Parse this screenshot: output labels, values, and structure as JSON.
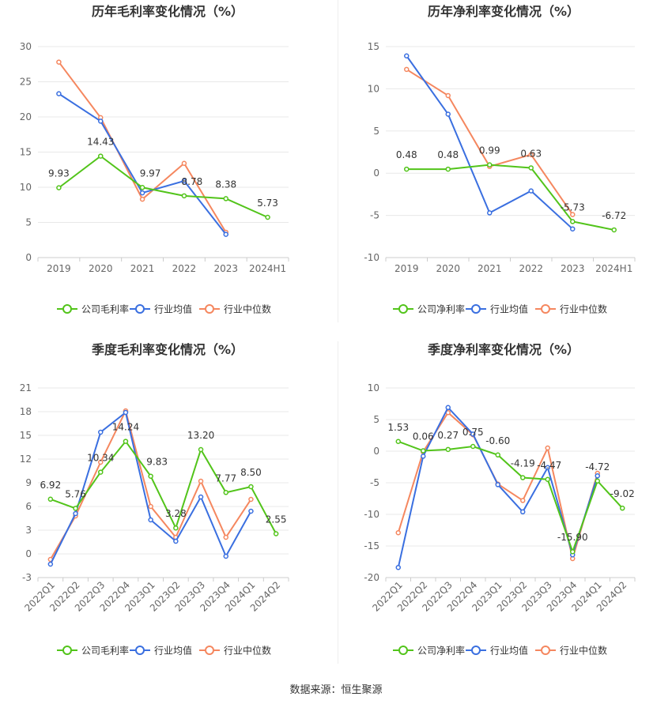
{
  "colors": {
    "company": "#52c41a",
    "industry_avg": "#3a6fe0",
    "industry_median": "#f5875f",
    "grid": "#e8e8e8",
    "axis_text": "#666666",
    "title": "#333333"
  },
  "legend": {
    "company_gross": "公司毛利率",
    "company_net": "公司净利率",
    "industry_avg": "行业均值",
    "industry_median": "行业中位数"
  },
  "footer": "数据来源：恒生聚源",
  "chart_data": [
    {
      "type": "line",
      "title": "历年毛利率变化情况（%）",
      "categories": [
        "2019",
        "2020",
        "2021",
        "2022",
        "2023",
        "2024H1"
      ],
      "yticks": [
        0,
        5,
        10,
        15,
        20,
        25,
        30
      ],
      "ylim": [
        0,
        30
      ],
      "series": [
        {
          "name": "公司毛利率",
          "key": "company",
          "values": [
            9.93,
            14.43,
            9.97,
            8.78,
            8.38,
            5.73
          ],
          "labels": [
            "9.93",
            "14.43",
            "9.97",
            "8.78",
            "8.38",
            "5.73"
          ]
        },
        {
          "name": "行业均值",
          "key": "industry_avg",
          "values": [
            23.3,
            19.4,
            9.2,
            10.9,
            3.3,
            null
          ]
        },
        {
          "name": "行业中位数",
          "key": "industry_median",
          "values": [
            27.8,
            19.9,
            8.3,
            13.4,
            3.6,
            null
          ]
        }
      ]
    },
    {
      "type": "line",
      "title": "历年净利率变化情况（%）",
      "categories": [
        "2019",
        "2020",
        "2021",
        "2022",
        "2023",
        "2024H1"
      ],
      "yticks": [
        -10,
        -5,
        0,
        5,
        10,
        15
      ],
      "ylim": [
        -10,
        15
      ],
      "series": [
        {
          "name": "公司净利率",
          "key": "company",
          "values": [
            0.48,
            0.48,
            0.99,
            0.63,
            -5.73,
            -6.72
          ],
          "labels": [
            "0.48",
            "0.48",
            "0.99",
            "0.63",
            "-5.73",
            "-6.72"
          ]
        },
        {
          "name": "行业均值",
          "key": "industry_avg",
          "values": [
            13.9,
            7.0,
            -4.7,
            -2.1,
            -6.6,
            null
          ]
        },
        {
          "name": "行业中位数",
          "key": "industry_median",
          "values": [
            12.3,
            9.2,
            0.8,
            2.2,
            -4.9,
            null
          ]
        }
      ]
    },
    {
      "type": "line",
      "title": "季度毛利率变化情况（%）",
      "categories": [
        "2022Q1",
        "2022Q2",
        "2022Q3",
        "2022Q4",
        "2023Q1",
        "2023Q2",
        "2023Q3",
        "2023Q4",
        "2024Q1",
        "2024Q2"
      ],
      "yticks": [
        -3,
        0,
        3,
        6,
        9,
        12,
        15,
        18,
        21
      ],
      "ylim": [
        -3,
        21
      ],
      "series": [
        {
          "name": "公司毛利率",
          "key": "company",
          "values": [
            6.92,
            5.76,
            10.34,
            14.24,
            9.83,
            3.28,
            13.2,
            7.77,
            8.5,
            2.55
          ],
          "labels": [
            "6.92",
            "5.76",
            "10.34",
            "14.24",
            "9.83",
            "3.28",
            "13.20",
            "7.77",
            "8.50",
            "2.55"
          ]
        },
        {
          "name": "行业均值",
          "key": "industry_avg",
          "values": [
            -1.3,
            5.1,
            15.4,
            17.9,
            4.3,
            1.6,
            7.2,
            -0.3,
            5.4,
            null
          ]
        },
        {
          "name": "行业中位数",
          "key": "industry_median",
          "values": [
            -0.7,
            4.8,
            11.6,
            18.1,
            6.0,
            2.1,
            9.2,
            2.1,
            6.9,
            null
          ]
        }
      ]
    },
    {
      "type": "line",
      "title": "季度净利率变化情况（%）",
      "categories": [
        "2022Q1",
        "2022Q2",
        "2022Q3",
        "2022Q4",
        "2023Q1",
        "2023Q2",
        "2023Q3",
        "2023Q4",
        "2024Q1",
        "2024Q2"
      ],
      "yticks": [
        -20,
        -15,
        -10,
        -5,
        0,
        5,
        10
      ],
      "ylim": [
        -20,
        10
      ],
      "series": [
        {
          "name": "公司净利率",
          "key": "company",
          "values": [
            1.53,
            0.06,
            0.27,
            0.75,
            -0.6,
            -4.19,
            -4.47,
            -15.9,
            -4.72,
            -9.02
          ],
          "labels": [
            "1.53",
            "0.06",
            "0.27",
            "0.75",
            "-0.60",
            "-4.19",
            "-4.47",
            "-15.90",
            "-4.72",
            "-9.02"
          ]
        },
        {
          "name": "行业均值",
          "key": "industry_avg",
          "values": [
            -18.4,
            -0.8,
            6.9,
            2.7,
            -5.3,
            -9.6,
            -2.6,
            -16.4,
            -3.9,
            null
          ]
        },
        {
          "name": "行业中位数",
          "key": "industry_median",
          "values": [
            -12.9,
            -0.1,
            6.1,
            2.6,
            -5.2,
            -7.8,
            0.5,
            -17.0,
            -3.5,
            null
          ]
        }
      ]
    }
  ]
}
